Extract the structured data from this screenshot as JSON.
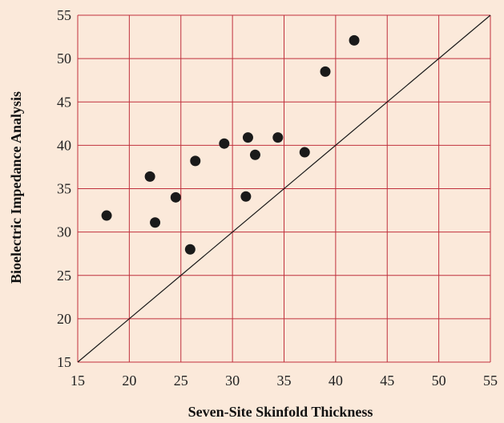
{
  "chart_data": {
    "type": "scatter",
    "title": "",
    "xlabel": "Seven-Site Skinfold Thickness",
    "ylabel": "Bioelectric Impedance Analysis",
    "xlim": [
      15,
      55
    ],
    "ylim": [
      15,
      55
    ],
    "xticks": [
      15,
      20,
      25,
      30,
      35,
      40,
      45,
      50,
      55
    ],
    "yticks": [
      15,
      20,
      25,
      30,
      35,
      40,
      45,
      50,
      55
    ],
    "xtick_labels": [
      "15",
      "20",
      "25",
      "30",
      "35",
      "40",
      "45",
      "50",
      "55"
    ],
    "ytick_labels": [
      "15",
      "20",
      "25",
      "30",
      "35",
      "40",
      "45",
      "50",
      "55"
    ],
    "grid": true,
    "legend": "none",
    "series": [
      {
        "points": [
          {
            "x": 17.8,
            "y": 31.9
          },
          {
            "x": 22.0,
            "y": 36.4
          },
          {
            "x": 22.5,
            "y": 31.1
          },
          {
            "x": 24.5,
            "y": 34.0
          },
          {
            "x": 25.9,
            "y": 28.0
          },
          {
            "x": 26.4,
            "y": 38.2
          },
          {
            "x": 29.2,
            "y": 40.2
          },
          {
            "x": 31.3,
            "y": 34.1
          },
          {
            "x": 31.5,
            "y": 40.9
          },
          {
            "x": 32.2,
            "y": 38.9
          },
          {
            "x": 34.4,
            "y": 40.9
          },
          {
            "x": 37.0,
            "y": 39.2
          },
          {
            "x": 39.0,
            "y": 48.5
          },
          {
            "x": 41.8,
            "y": 52.1
          }
        ]
      }
    ],
    "reference_line": {
      "from": [
        15,
        15
      ],
      "to": [
        55,
        55
      ]
    },
    "colors": {
      "background": "#fbe9da",
      "grid": "#c0303c",
      "points": "#1a1a1a",
      "reference_line": "#1a1a1a"
    }
  }
}
